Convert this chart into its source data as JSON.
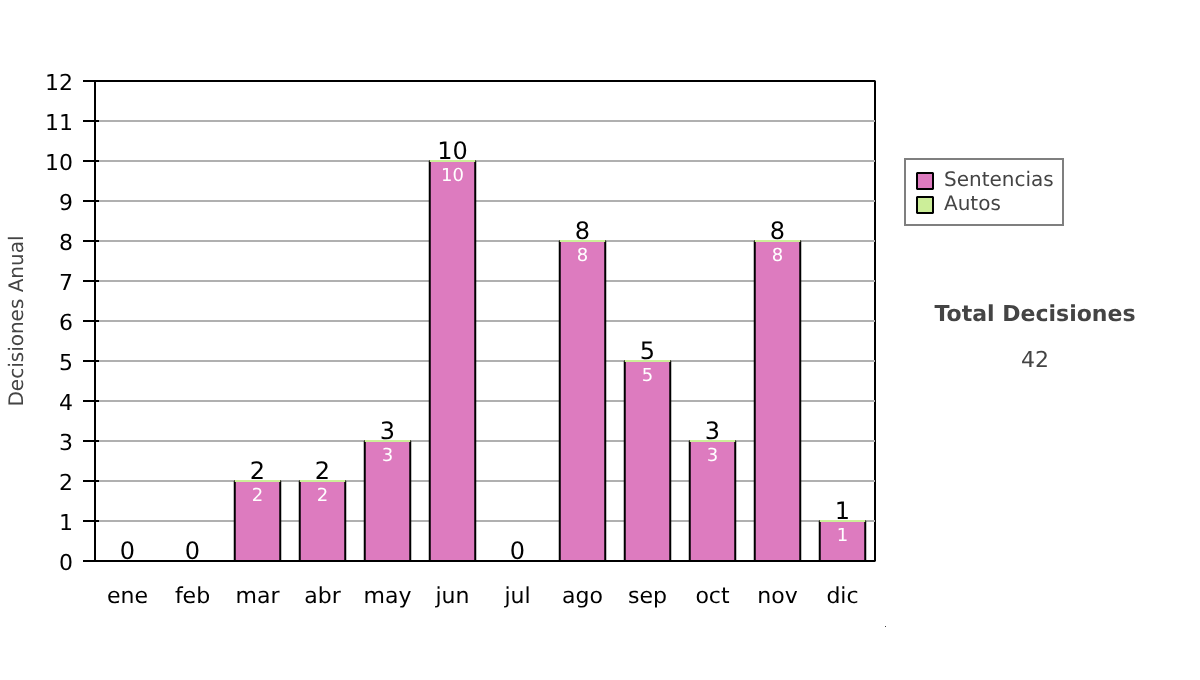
{
  "chart_data": {
    "type": "bar",
    "stacked": true,
    "ylabel": "Decisiones Anual",
    "categories": [
      "ene",
      "feb",
      "mar",
      "abr",
      "may",
      "jun",
      "jul",
      "ago",
      "sep",
      "oct",
      "nov",
      "dic"
    ],
    "series": [
      {
        "name": "Sentencias",
        "color": "#dd7bbf",
        "values": [
          0,
          0,
          2,
          2,
          3,
          10,
          0,
          8,
          5,
          3,
          8,
          1
        ],
        "value_labels": [
          null,
          null,
          "2",
          "2",
          "3",
          "10",
          null,
          "8",
          "5",
          "3",
          "8",
          "1"
        ]
      },
      {
        "name": "Autos",
        "color": "#ccee99",
        "values": [
          0,
          0,
          0,
          0,
          0,
          0,
          0,
          0,
          0,
          0,
          0,
          0
        ]
      }
    ],
    "totals": [
      "0",
      "0",
      "2",
      "2",
      "3",
      "10",
      "0",
      "8",
      "5",
      "3",
      "8",
      "1"
    ],
    "ylim": [
      0,
      12
    ],
    "yticks": [
      0,
      1,
      2,
      3,
      4,
      5,
      6,
      7,
      8,
      9,
      10,
      11,
      12
    ],
    "grid": "y",
    "legend": "right",
    "annotations": [
      "Total Decisiones",
      "42"
    ]
  }
}
